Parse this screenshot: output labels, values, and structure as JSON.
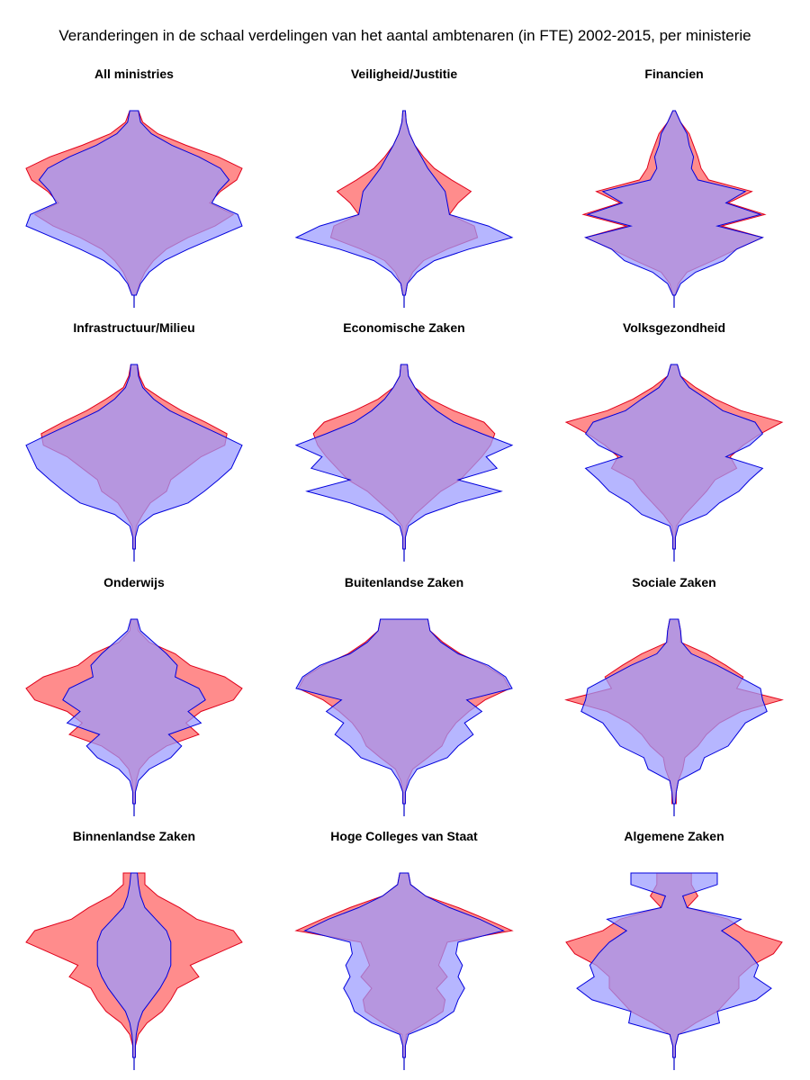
{
  "title": "Veranderingen in de schaal verdelingen van het aantal ambtenaren (in FTE) 2002-2015, per ministerie",
  "colors": {
    "series_2002_fill": "#ff8c8c",
    "series_2002_stroke": "#e0001a",
    "series_2015_fill": "#9a9aff",
    "series_2015_stroke": "#0000dd",
    "axis": "#0000cc"
  },
  "chart_data": {
    "type": "area",
    "description_of_encoding": "violin-like mirrored distribution per ministry; y = salary scale level (bottom = low, top = high), width = relative share of FTE",
    "series": [
      {
        "year": "2002",
        "color": "#ff8c8c"
      },
      {
        "year": "2015",
        "color": "#9a9aff"
      }
    ],
    "panels": [
      {
        "name": "All ministries",
        "s2002": [
          0.02,
          0.05,
          0.1,
          0.18,
          0.3,
          0.5,
          0.75,
          0.92,
          0.7,
          0.8,
          0.95,
          1.0,
          0.78,
          0.48,
          0.22,
          0.08,
          0.04
        ],
        "s2015": [
          0.02,
          0.06,
          0.14,
          0.28,
          0.5,
          0.75,
          1.0,
          0.96,
          0.72,
          0.78,
          0.88,
          0.8,
          0.6,
          0.35,
          0.16,
          0.06,
          0.04
        ]
      },
      {
        "name": "Veiligheid/Justitie",
        "s2002": [
          0.0,
          0.03,
          0.08,
          0.18,
          0.4,
          0.68,
          0.65,
          0.42,
          0.5,
          0.62,
          0.44,
          0.28,
          0.18,
          0.1,
          0.05,
          0.02,
          0.0
        ],
        "s2015": [
          0.0,
          0.03,
          0.12,
          0.28,
          0.6,
          1.0,
          0.78,
          0.42,
          0.4,
          0.38,
          0.3,
          0.22,
          0.16,
          0.1,
          0.05,
          0.02,
          0.0
        ]
      },
      {
        "name": "Financien",
        "s2002": [
          0.0,
          0.04,
          0.12,
          0.36,
          0.58,
          0.82,
          0.44,
          0.84,
          0.5,
          0.72,
          0.32,
          0.25,
          0.22,
          0.18,
          0.14,
          0.06,
          0.0
        ],
        "s2015": [
          0.0,
          0.06,
          0.2,
          0.46,
          0.58,
          0.82,
          0.4,
          0.8,
          0.48,
          0.66,
          0.22,
          0.16,
          0.18,
          0.14,
          0.12,
          0.06,
          0.0
        ]
      },
      {
        "name": "Infrastructuur/Milieu",
        "s2002": [
          0.0,
          0.0,
          0.02,
          0.08,
          0.15,
          0.3,
          0.34,
          0.48,
          0.62,
          0.84,
          0.86,
          0.66,
          0.44,
          0.26,
          0.1,
          0.05,
          0.03
        ],
        "s2015": [
          0.0,
          0.0,
          0.04,
          0.18,
          0.5,
          0.65,
          0.78,
          0.9,
          0.95,
          1.0,
          0.78,
          0.55,
          0.33,
          0.18,
          0.08,
          0.04,
          0.03
        ]
      },
      {
        "name": "Economische Zaken",
        "s2002": [
          0.0,
          0.0,
          0.02,
          0.1,
          0.22,
          0.34,
          0.52,
          0.62,
          0.72,
          0.8,
          0.84,
          0.74,
          0.46,
          0.24,
          0.1,
          0.04,
          0.03
        ],
        "s2015": [
          0.0,
          0.0,
          0.04,
          0.2,
          0.5,
          0.9,
          0.5,
          0.86,
          0.76,
          1.0,
          0.72,
          0.46,
          0.3,
          0.18,
          0.1,
          0.04,
          0.03
        ]
      },
      {
        "name": "Volksgezondheid",
        "s2002": [
          0.0,
          0.0,
          0.02,
          0.1,
          0.2,
          0.3,
          0.38,
          0.58,
          0.52,
          0.64,
          0.8,
          1.0,
          0.62,
          0.38,
          0.2,
          0.06,
          0.03
        ],
        "s2015": [
          0.0,
          0.0,
          0.04,
          0.3,
          0.42,
          0.6,
          0.7,
          0.82,
          0.48,
          0.7,
          0.82,
          0.75,
          0.45,
          0.3,
          0.14,
          0.06,
          0.03
        ]
      },
      {
        "name": "Onderwijs",
        "s2002": [
          0.0,
          0.0,
          0.02,
          0.05,
          0.14,
          0.3,
          0.6,
          0.48,
          0.62,
          0.92,
          1.0,
          0.84,
          0.52,
          0.38,
          0.14,
          0.04,
          0.03
        ],
        "s2015": [
          0.0,
          0.0,
          0.04,
          0.14,
          0.34,
          0.44,
          0.32,
          0.62,
          0.5,
          0.66,
          0.6,
          0.38,
          0.4,
          0.3,
          0.18,
          0.06,
          0.03
        ]
      },
      {
        "name": "Buitenlandse Zaken",
        "s2002": [
          0.0,
          0.0,
          0.03,
          0.08,
          0.22,
          0.35,
          0.4,
          0.48,
          0.6,
          0.75,
          0.98,
          0.92,
          0.75,
          0.52,
          0.36,
          0.24,
          0.22
        ],
        "s2015": [
          0.0,
          0.0,
          0.05,
          0.12,
          0.4,
          0.5,
          0.64,
          0.56,
          0.72,
          0.58,
          1.0,
          0.94,
          0.78,
          0.5,
          0.34,
          0.24,
          0.22
        ]
      },
      {
        "name": "Sociale Zaken",
        "s2002": [
          0.02,
          0.02,
          0.04,
          0.08,
          0.1,
          0.22,
          0.3,
          0.42,
          0.62,
          1.0,
          0.58,
          0.64,
          0.48,
          0.3,
          0.06,
          0.06,
          0.04
        ],
        "s2015": [
          0.0,
          0.02,
          0.04,
          0.24,
          0.28,
          0.5,
          0.58,
          0.66,
          0.86,
          0.82,
          0.8,
          0.6,
          0.4,
          0.16,
          0.07,
          0.06,
          0.04
        ]
      },
      {
        "name": "Binnenlandse Zaken",
        "s2002": [
          0.0,
          0.0,
          0.04,
          0.12,
          0.26,
          0.34,
          0.4,
          0.6,
          0.52,
          0.76,
          1.0,
          0.92,
          0.58,
          0.42,
          0.22,
          0.1,
          0.1
        ],
        "s2015": [
          0.0,
          0.0,
          0.02,
          0.04,
          0.08,
          0.16,
          0.24,
          0.3,
          0.34,
          0.34,
          0.34,
          0.3,
          0.2,
          0.1,
          0.06,
          0.04,
          0.03
        ]
      },
      {
        "name": "Hoge Colleges van Staat",
        "s2002": [
          0.0,
          0.0,
          0.02,
          0.2,
          0.36,
          0.38,
          0.3,
          0.4,
          0.32,
          0.36,
          0.4,
          1.0,
          0.76,
          0.5,
          0.2,
          0.06,
          0.04
        ],
        "s2015": [
          0.0,
          0.0,
          0.04,
          0.3,
          0.46,
          0.5,
          0.56,
          0.5,
          0.54,
          0.48,
          0.5,
          0.92,
          0.7,
          0.42,
          0.2,
          0.06,
          0.04
        ]
      },
      {
        "name": "Algemene Zaken",
        "s2002": [
          0.0,
          0.0,
          0.04,
          0.2,
          0.4,
          0.5,
          0.6,
          0.6,
          0.72,
          0.92,
          1.0,
          0.66,
          0.5,
          0.12,
          0.22,
          0.16,
          0.16
        ],
        "s2015": [
          0.0,
          0.0,
          0.04,
          0.42,
          0.4,
          0.76,
          0.9,
          0.74,
          0.78,
          0.7,
          0.6,
          0.44,
          0.62,
          0.12,
          0.08,
          0.4,
          0.4
        ]
      }
    ]
  }
}
